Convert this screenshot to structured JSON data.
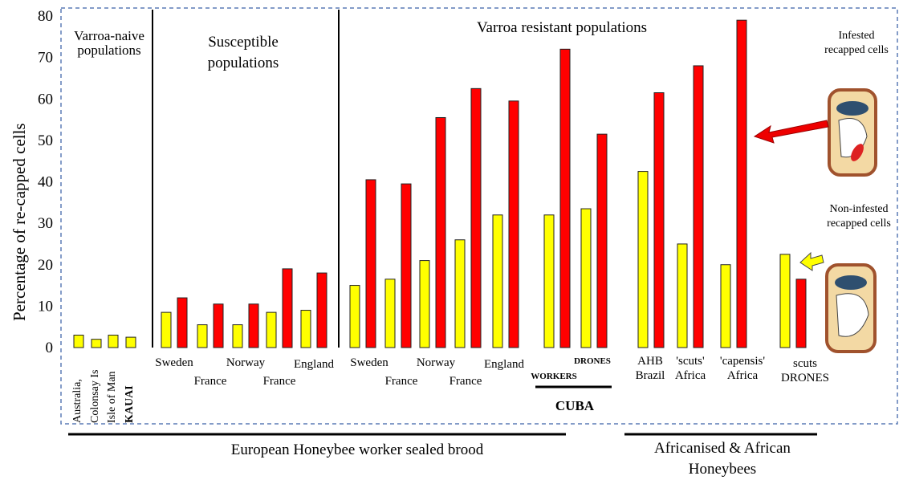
{
  "chart_data": {
    "type": "bar",
    "ylabel": "Percentage of re-capped cells",
    "ylim": [
      0,
      80
    ],
    "yticks": [
      0,
      10,
      20,
      30,
      40,
      50,
      60,
      70,
      80
    ],
    "categories": [
      "Australia,",
      "Colonsay Is",
      "Isle of Man",
      "KAUAI",
      "Sweden",
      "France",
      "Norway",
      "France",
      "England",
      "Sweden",
      "France",
      "Norway",
      "France",
      "England",
      "WORKERS",
      "DRONES",
      "AHB Brazil",
      "'scuts' Africa",
      "'capensis' Africa",
      "scuts DRONES"
    ],
    "series": [
      {
        "name": "Non-infested recapped cells",
        "color": "#ffff00",
        "values": [
          3,
          2,
          3,
          2.5,
          8.5,
          5.5,
          5.5,
          8.5,
          9,
          15,
          16.5,
          21,
          26,
          32,
          32,
          33.5,
          42.5,
          25,
          20,
          22.5
        ]
      },
      {
        "name": "Infested recapped cells",
        "color": "#ff0000",
        "values": [
          null,
          null,
          null,
          null,
          12,
          10.5,
          10.5,
          19,
          18,
          40.5,
          39.5,
          55.5,
          62.5,
          59.5,
          72,
          51.5,
          61.5,
          68,
          79,
          16.5
        ]
      }
    ],
    "groups": [
      "Varroa-naive populations",
      "Susceptible populations",
      "Varroa resistant populations"
    ],
    "subgroup": "CUBA",
    "origins": [
      "European Honeybee worker sealed brood",
      "Africanised & African Honeybees"
    ]
  }
}
